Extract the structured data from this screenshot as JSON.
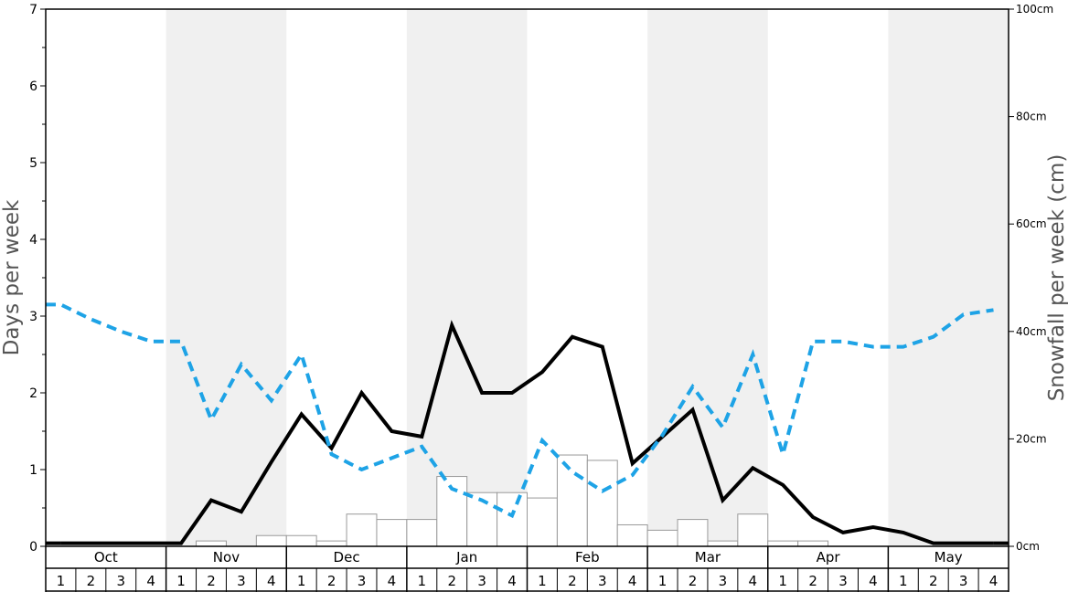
{
  "chart_data": {
    "type": "bar+line",
    "left_axis": {
      "label": "Days per week",
      "ylim": [
        0,
        7
      ],
      "ticks": [
        "0",
        "1",
        "2",
        "3",
        "4",
        "5",
        "6",
        "7"
      ]
    },
    "right_axis": {
      "label": "Snowfall per week (cm)",
      "ylim": [
        0,
        100
      ],
      "ticks": [
        "0cm",
        "20cm",
        "40cm",
        "60cm",
        "80cm",
        "100cm"
      ]
    },
    "months": [
      "Oct",
      "Nov",
      "Dec",
      "Jan",
      "Feb",
      "Mar",
      "Apr",
      "May"
    ],
    "weeks": [
      "1",
      "2",
      "3",
      "4"
    ],
    "shaded_months": [
      "Nov",
      "Jan",
      "Mar",
      "May"
    ],
    "snowfall_cm": [
      0,
      0,
      0,
      0,
      0,
      1,
      0,
      2,
      2,
      1,
      6,
      5,
      5,
      13,
      10,
      10,
      9,
      17,
      16,
      4,
      3,
      5,
      1,
      6,
      1,
      1,
      0,
      0,
      0,
      0,
      0,
      0
    ],
    "series": [
      {
        "style": "solid-black",
        "axis": "left",
        "values": [
          0.04,
          0.04,
          0.04,
          0.04,
          0.04,
          0.6,
          0.45,
          1.1,
          1.72,
          1.28,
          2.0,
          1.5,
          1.43,
          2.88,
          2.0,
          2.0,
          2.27,
          2.73,
          2.6,
          1.08,
          1.43,
          1.78,
          0.6,
          1.02,
          0.8,
          0.38,
          0.18,
          0.25,
          0.18,
          0.04,
          0.04,
          0.04
        ]
      },
      {
        "style": "dashed-blue",
        "axis": "left",
        "values": [
          3.15,
          2.96,
          2.8,
          2.67,
          2.67,
          1.65,
          2.37,
          1.9,
          2.5,
          1.2,
          1.0,
          1.15,
          1.3,
          0.75,
          0.6,
          0.4,
          1.38,
          0.97,
          0.72,
          0.93,
          1.45,
          2.08,
          1.55,
          2.5,
          1.2,
          2.67,
          2.67,
          2.6,
          2.6,
          2.73,
          3.02,
          3.08
        ]
      }
    ],
    "colors": {
      "solid_line": "#000000",
      "dashed_line": "#1ea3e6",
      "band": "#f0f0f0",
      "bar_stroke": "#999999"
    }
  }
}
